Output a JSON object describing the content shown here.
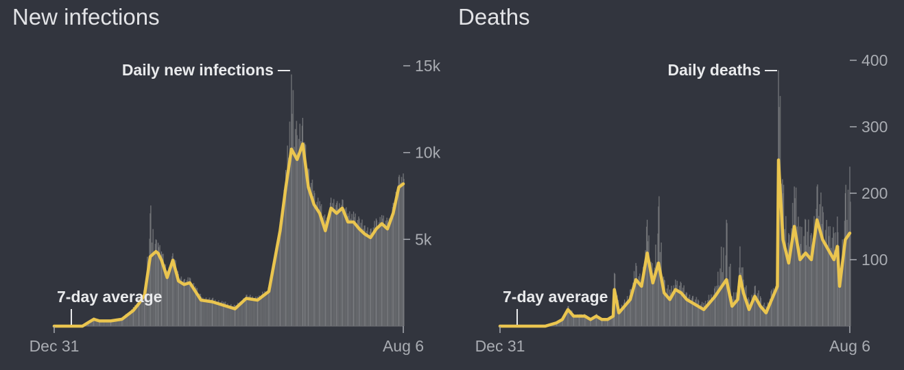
{
  "colors": {
    "background": "#32353e",
    "bars": "#7a7c80",
    "area": "#66686c",
    "average_line": "#eac54f",
    "text": "#e2e3e6",
    "muted_text": "#a9acb2"
  },
  "chart_data": [
    {
      "type": "bar",
      "title": "New infections",
      "x_labels": [
        "Dec 31",
        "Aug 6"
      ],
      "y_ticks": [
        5000,
        10000,
        15000
      ],
      "y_tick_labels": [
        "5k",
        "10k",
        "15k"
      ],
      "ylim": [
        0,
        15000
      ],
      "annotations": {
        "bars": "Daily new infections",
        "line": "7-day average"
      },
      "series": [
        {
          "name": "7-day average",
          "x": [
            0,
            25,
            30,
            35,
            40,
            50,
            60,
            70,
            75,
            80,
            85,
            90,
            92,
            95,
            100,
            105,
            110,
            115,
            120,
            125,
            130,
            140,
            150,
            160,
            170,
            180,
            190,
            200,
            205,
            210,
            215,
            220,
            222,
            225,
            230,
            235,
            240,
            245,
            250,
            255,
            260,
            265,
            270,
            275,
            280,
            285,
            290,
            295,
            300,
            305,
            309
          ],
          "values": [
            0,
            0,
            200,
            400,
            300,
            300,
            400,
            900,
            1300,
            1800,
            4000,
            4300,
            4200,
            3800,
            2800,
            3800,
            2600,
            2400,
            2500,
            2000,
            1500,
            1400,
            1200,
            1000,
            1600,
            1500,
            2000,
            5500,
            8000,
            10200,
            9600,
            10500,
            9500,
            8000,
            7000,
            6500,
            5500,
            6800,
            6500,
            6800,
            6000,
            6000,
            5600,
            5300,
            5100,
            5600,
            5900,
            5600,
            6500,
            8000,
            8200
          ]
        },
        {
          "name": "Daily new infections",
          "x": [
            0,
            25,
            30,
            35,
            40,
            50,
            60,
            70,
            75,
            80,
            85,
            90,
            92,
            95,
            100,
            105,
            110,
            115,
            120,
            125,
            130,
            140,
            150,
            160,
            170,
            180,
            190,
            200,
            205,
            210,
            215,
            220,
            222,
            225,
            230,
            235,
            240,
            245,
            250,
            255,
            260,
            265,
            270,
            275,
            280,
            285,
            290,
            295,
            300,
            305,
            309
          ],
          "values": [
            0,
            0,
            250,
            500,
            350,
            350,
            500,
            1100,
            1600,
            2200,
            6500,
            5000,
            4800,
            4300,
            3200,
            4200,
            3000,
            2700,
            2800,
            2300,
            1700,
            1600,
            1400,
            1200,
            1800,
            1700,
            2300,
            6000,
            9000,
            14500,
            11000,
            12000,
            10500,
            9000,
            7800,
            7200,
            6100,
            7400,
            7100,
            7300,
            6500,
            6600,
            6200,
            5800,
            5600,
            6200,
            6400,
            6100,
            7100,
            8600,
            8800
          ]
        }
      ]
    },
    {
      "type": "bar",
      "title": "Deaths",
      "x_labels": [
        "Dec 31",
        "Aug 6"
      ],
      "y_ticks": [
        100,
        200,
        300,
        400
      ],
      "y_tick_labels": [
        "100",
        "200",
        "300",
        "400"
      ],
      "ylim": [
        0,
        400
      ],
      "annotations": {
        "bars": "Daily deaths",
        "line": "7-day average"
      },
      "series": [
        {
          "name": "7-day average",
          "x": [
            0,
            40,
            50,
            55,
            60,
            65,
            70,
            75,
            80,
            85,
            90,
            95,
            100,
            101,
            105,
            110,
            115,
            120,
            125,
            130,
            135,
            140,
            145,
            150,
            155,
            160,
            165,
            170,
            175,
            180,
            190,
            200,
            205,
            210,
            212,
            215,
            220,
            225,
            230,
            235,
            240,
            245,
            246,
            250,
            255,
            260,
            265,
            270,
            275,
            280,
            285,
            290,
            295,
            298,
            300,
            305,
            309
          ],
          "values": [
            0,
            0,
            5,
            10,
            25,
            15,
            15,
            15,
            10,
            15,
            10,
            10,
            15,
            55,
            20,
            30,
            40,
            70,
            60,
            110,
            65,
            95,
            50,
            40,
            55,
            50,
            40,
            35,
            30,
            25,
            45,
            70,
            30,
            40,
            75,
            50,
            25,
            45,
            30,
            20,
            40,
            60,
            250,
            130,
            95,
            150,
            100,
            110,
            100,
            160,
            130,
            115,
            100,
            120,
            60,
            130,
            140
          ]
        },
        {
          "name": "Daily deaths",
          "x": [
            0,
            40,
            50,
            55,
            60,
            65,
            70,
            75,
            80,
            85,
            90,
            95,
            100,
            101,
            105,
            110,
            115,
            120,
            125,
            130,
            135,
            140,
            145,
            150,
            155,
            160,
            165,
            170,
            175,
            180,
            190,
            200,
            205,
            210,
            212,
            215,
            220,
            225,
            230,
            235,
            240,
            245,
            246,
            250,
            255,
            260,
            265,
            270,
            275,
            280,
            285,
            290,
            295,
            298,
            300,
            305,
            309
          ],
          "values": [
            0,
            0,
            6,
            12,
            30,
            18,
            18,
            18,
            12,
            18,
            12,
            12,
            18,
            80,
            25,
            40,
            55,
            95,
            70,
            160,
            80,
            180,
            70,
            55,
            70,
            65,
            50,
            45,
            40,
            35,
            60,
            160,
            45,
            60,
            120,
            70,
            40,
            60,
            45,
            30,
            55,
            80,
            385,
            200,
            140,
            210,
            150,
            160,
            140,
            210,
            180,
            150,
            140,
            165,
            80,
            200,
            240
          ]
        }
      ]
    }
  ]
}
